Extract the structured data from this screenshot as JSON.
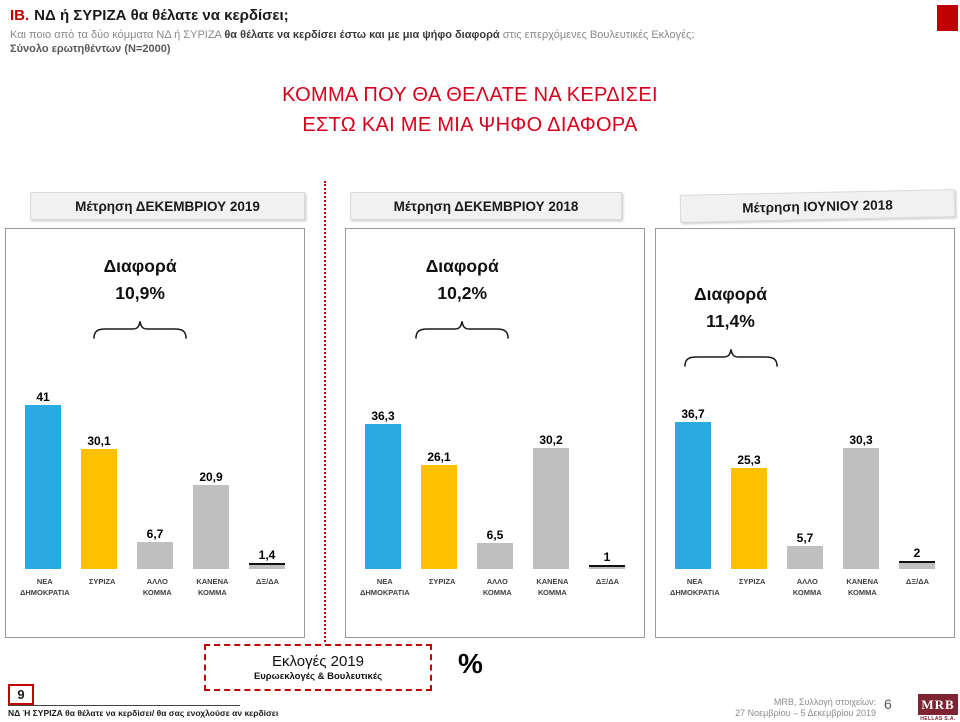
{
  "slide": {
    "question_number": "ΙΒ.",
    "question_title": "ΝΔ  ή ΣΥΡΙΖΑ θα θέλατε να κερδίσει;",
    "subtitle": {
      "pre": "Και ποιο από τα δύο κόμματα ΝΔ ή ΣΥΡΙΖΑ ",
      "bold": "θα θέλατε να κερδίσει έστω και με μια ψήφο διαφορά",
      "post": " στις επερχόμενες Βουλευτικές Εκλογές;"
    },
    "sample": "Σύνολο ερωτηθέντων (N=2000)",
    "main_title_line1": "ΚΟΜΜΑ ΠΟΥ ΘΑ ΘΕΛΑΤΕ ΝΑ ΚΕΡΔΙΣΕΙ",
    "main_title_line2": "ΕΣΤΩ ΚΑΙ ΜΕ ΜΙΑ ΨΗΦΟ ΔΙΑΦΟΡΑ"
  },
  "panels": [
    {
      "header": "Μέτρηση ΔΕΚΕΜΒΡΙΟΥ 2019",
      "diff_label": "Διαφορά",
      "diff_value": "10,9%",
      "bars": [
        {
          "category": "ΝΕΑ ΔΗΜΟΚΡΑΤΙΑ",
          "value_label": "41",
          "num": 41,
          "color": "#29ABE2"
        },
        {
          "category": "ΣΥΡΙΖΑ",
          "value_label": "30,1",
          "num": 30.1,
          "color": "#FFC000"
        },
        {
          "category": "ΑΛΛΟ ΚΟΜΜΑ",
          "value_label": "6,7",
          "num": 6.7,
          "color": "#BFBFBF"
        },
        {
          "category": "ΚΑΝΕΝΑ ΚΟΜΜΑ",
          "value_label": "20,9",
          "num": 20.9,
          "color": "#BFBFBF"
        },
        {
          "category": "ΔΞ/ΔΑ",
          "value_label": "1,4",
          "num": 1.4,
          "color": "#BFBFBF",
          "top_line": true
        }
      ]
    },
    {
      "header": "Μέτρηση ΔΕΚΕΜΒΡΙΟΥ 2018",
      "diff_label": "Διαφορά",
      "diff_value": "10,2%",
      "bars": [
        {
          "category": "ΝΕΑ ΔΗΜΟΚΡΑΤΙΑ",
          "value_label": "36,3",
          "num": 36.3,
          "color": "#29ABE2"
        },
        {
          "category": "ΣΥΡΙΖΑ",
          "value_label": "26,1",
          "num": 26.1,
          "color": "#FFC000"
        },
        {
          "category": "ΑΛΛΟ ΚΟΜΜΑ",
          "value_label": "6,5",
          "num": 6.5,
          "color": "#BFBFBF"
        },
        {
          "category": "ΚΑΝΕΝΑ ΚΟΜΜΑ",
          "value_label": "30,2",
          "num": 30.2,
          "color": "#BFBFBF"
        },
        {
          "category": "ΔΞ/ΔΑ",
          "value_label": "1",
          "num": 1,
          "color": "#BFBFBF",
          "top_line": true
        }
      ]
    },
    {
      "header": "Μέτρηση ΙΟΥΝΙΟΥ 2018",
      "diff_label": "Διαφορά",
      "diff_value": "11,4%",
      "bars": [
        {
          "category": "ΝΕΑ ΔΗΜΟΚΡΑΤΙΑ",
          "value_label": "36,7",
          "num": 36.7,
          "color": "#29ABE2"
        },
        {
          "category": "ΣΥΡΙΖΑ",
          "value_label": "25,3",
          "num": 25.3,
          "color": "#FFC000"
        },
        {
          "category": "ΑΛΛΟ ΚΟΜΜΑ",
          "value_label": "5,7",
          "num": 5.7,
          "color": "#BFBFBF"
        },
        {
          "category": "ΚΑΝΕΝΑ ΚΟΜΜΑ",
          "value_label": "30,3",
          "num": 30.3,
          "color": "#BFBFBF"
        },
        {
          "category": "ΔΞ/ΔΑ",
          "value_label": "2",
          "num": 2,
          "color": "#BFBFBF",
          "top_line": true
        }
      ]
    }
  ],
  "chart_data": [
    {
      "type": "bar",
      "title": "Μέτρηση ΔΕΚΕΜΒΡΙΟΥ 2019",
      "categories": [
        "ΝΕΑ ΔΗΜΟΚΡΑΤΙΑ",
        "ΣΥΡΙΖΑ",
        "ΑΛΛΟ ΚΟΜΜΑ",
        "ΚΑΝΕΝΑ ΚΟΜΜΑ",
        "ΔΞ/ΔΑ"
      ],
      "values": [
        41,
        30.1,
        6.7,
        20.9,
        1.4
      ],
      "annotation": "Διαφορά 10,9%",
      "xlabel": "",
      "ylabel": "",
      "ylim": [
        0,
        45
      ],
      "grid": false,
      "legend": false,
      "bar_colors": [
        "#29ABE2",
        "#FFC000",
        "#BFBFBF",
        "#BFBFBF",
        "#BFBFBF"
      ]
    },
    {
      "type": "bar",
      "title": "Μέτρηση ΔΕΚΕΜΒΡΙΟΥ 2018",
      "categories": [
        "ΝΕΑ ΔΗΜΟΚΡΑΤΙΑ",
        "ΣΥΡΙΖΑ",
        "ΑΛΛΟ ΚΟΜΜΑ",
        "ΚΑΝΕΝΑ ΚΟΜΜΑ",
        "ΔΞ/ΔΑ"
      ],
      "values": [
        36.3,
        26.1,
        6.5,
        30.2,
        1
      ],
      "annotation": "Διαφορά 10,2%",
      "xlabel": "",
      "ylabel": "",
      "ylim": [
        0,
        45
      ],
      "grid": false,
      "legend": false,
      "bar_colors": [
        "#29ABE2",
        "#FFC000",
        "#BFBFBF",
        "#BFBFBF",
        "#BFBFBF"
      ]
    },
    {
      "type": "bar",
      "title": "Μέτρηση ΙΟΥΝΙΟΥ 2018",
      "categories": [
        "ΝΕΑ ΔΗΜΟΚΡΑΤΙΑ",
        "ΣΥΡΙΖΑ",
        "ΑΛΛΟ ΚΟΜΜΑ",
        "ΚΑΝΕΝΑ ΚΟΜΜΑ",
        "ΔΞ/ΔΑ"
      ],
      "values": [
        36.7,
        25.3,
        5.7,
        30.3,
        2
      ],
      "annotation": "Διαφορά 11,4%",
      "xlabel": "",
      "ylabel": "",
      "ylim": [
        0,
        45
      ],
      "grid": false,
      "legend": false,
      "bar_colors": [
        "#29ABE2",
        "#FFC000",
        "#BFBFBF",
        "#BFBFBF",
        "#BFBFBF"
      ]
    }
  ],
  "callout": {
    "title": "Εκλογές 2019",
    "subtitle": "Ευρωεκλογές & Βουλευτικές"
  },
  "percent_sign": "%",
  "footer": {
    "page_box": "9",
    "note": "ΝΔ Ή ΣΥΡΙΖΑ θα θέλατε να κερδίσει/ θα σας ενοχλούσε αν κερδίσει",
    "source_line1": "MRB, Συλλογή στοιχείων:",
    "source_line2": "27 Νοεμβρίου – 5 Δεκεμβρίου 2019",
    "page_number": "6",
    "logo_text": "MRB",
    "logo_sub": "HELLAS S.A."
  },
  "colors": {
    "accent_red": "#C00000",
    "title_red": "#D6001C",
    "nd_blue": "#29ABE2",
    "syriza_yellow": "#FFC000",
    "neutral_gray": "#BFBFBF"
  }
}
